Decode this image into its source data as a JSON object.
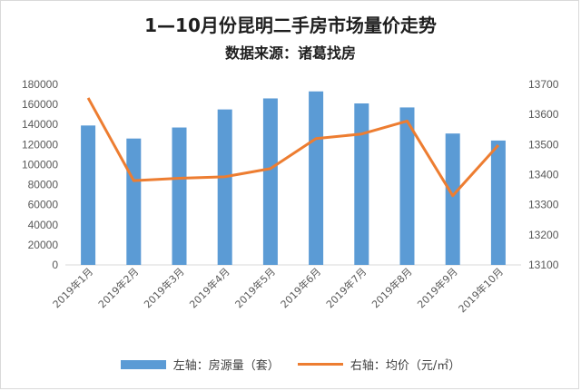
{
  "chart_data": {
    "type": "bar+line",
    "title": "1—10月份昆明二手房市场量价走势",
    "subtitle": "数据来源：诸葛找房",
    "categories": [
      "2019年1月",
      "2019年2月",
      "2019年3月",
      "2019年4月",
      "2019年5月",
      "2019年6月",
      "2019年7月",
      "2019年8月",
      "2019年9月",
      "2019年10月"
    ],
    "series": [
      {
        "name": "左轴：房源量（套）",
        "type": "bar",
        "axis": "left",
        "color": "#5b9bd5",
        "values": [
          139000,
          126000,
          137000,
          155000,
          166000,
          173000,
          161000,
          157000,
          131000,
          124000
        ]
      },
      {
        "name": "右轴：均价（元/㎡）",
        "type": "line",
        "axis": "right",
        "color": "#ed7d31",
        "values": [
          13655,
          13380,
          13388,
          13393,
          13420,
          13520,
          13535,
          13578,
          13330,
          13498
        ]
      }
    ],
    "left_axis": {
      "ylim": [
        0,
        180000
      ],
      "ticks": [
        "0",
        "20000",
        "40000",
        "60000",
        "80000",
        "100000",
        "120000",
        "140000",
        "160000",
        "180000"
      ]
    },
    "right_axis": {
      "ylim": [
        13100,
        13700
      ],
      "ticks": [
        "13100",
        "13200",
        "13300",
        "13400",
        "13500",
        "13600",
        "13700"
      ]
    },
    "grid": false,
    "legend": "bottom"
  }
}
